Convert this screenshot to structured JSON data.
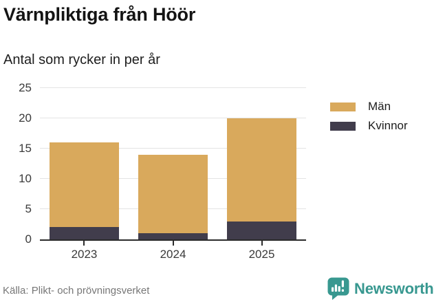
{
  "header": {
    "title": "Värnpliktiga från Höör",
    "subtitle": "Antal som rycker in per år"
  },
  "chart_data": {
    "type": "bar",
    "stacked": true,
    "title": "Värnpliktiga från Höör",
    "subtitle": "Antal som rycker in per år",
    "categories": [
      "2023",
      "2024",
      "2025"
    ],
    "series": [
      {
        "name": "Män",
        "color": "#d9a95c",
        "values": [
          14,
          13,
          17
        ]
      },
      {
        "name": "Kvinnor",
        "color": "#413d4c",
        "values": [
          2,
          1,
          3
        ]
      }
    ],
    "stack_order_bottom_to_top": [
      1,
      0
    ],
    "totals": [
      16,
      14,
      20
    ],
    "xlabel": "",
    "ylabel": "",
    "ylim": [
      0,
      25
    ],
    "yticks": [
      0,
      5,
      10,
      15,
      20,
      25
    ],
    "grid": "horizontal",
    "legend_position": "right"
  },
  "footer": {
    "source": "Källa: Plikt- och prövningsverket",
    "brand": "Newsworthy"
  },
  "colors": {
    "men": "#d9a95c",
    "women": "#413d4c",
    "grid": "#e3e3e3",
    "axis": "#2b2b2b",
    "tick_text": "#3a3a3a",
    "source_text": "#777777",
    "brand_teal": "#389890"
  }
}
